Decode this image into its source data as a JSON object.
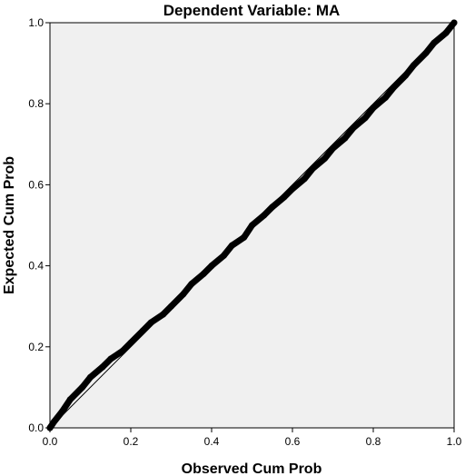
{
  "chart_data": {
    "type": "line",
    "title": "Dependent Variable: MA",
    "xlabel": "Observed Cum Prob",
    "ylabel": "Expected Cum Prob",
    "xlim": [
      0.0,
      1.0
    ],
    "ylim": [
      0.0,
      1.0
    ],
    "x_ticks": [
      "0.0",
      "0.2",
      "0.4",
      "0.6",
      "0.8",
      "1.0"
    ],
    "y_ticks": [
      "0.0",
      "0.2",
      "0.4",
      "0.6",
      "0.8",
      "1.0"
    ],
    "grid": false,
    "plot_background": "#f0f0f0",
    "series": [
      {
        "role": "reference",
        "color": "#000000",
        "x": [
          0.0,
          1.0
        ],
        "y": [
          0.0,
          1.0
        ]
      },
      {
        "role": "observed",
        "color": "#000000",
        "x": [
          0.0,
          0.01,
          0.03,
          0.05,
          0.08,
          0.1,
          0.13,
          0.15,
          0.18,
          0.2,
          0.23,
          0.25,
          0.28,
          0.3,
          0.33,
          0.35,
          0.38,
          0.4,
          0.43,
          0.45,
          0.48,
          0.5,
          0.53,
          0.55,
          0.58,
          0.6,
          0.63,
          0.65,
          0.68,
          0.7,
          0.73,
          0.75,
          0.78,
          0.8,
          0.83,
          0.85,
          0.88,
          0.9,
          0.93,
          0.95,
          0.98,
          1.0
        ],
        "y": [
          0.0,
          0.015,
          0.04,
          0.07,
          0.1,
          0.125,
          0.15,
          0.17,
          0.19,
          0.21,
          0.24,
          0.26,
          0.28,
          0.3,
          0.33,
          0.355,
          0.38,
          0.4,
          0.425,
          0.45,
          0.47,
          0.5,
          0.525,
          0.545,
          0.57,
          0.59,
          0.615,
          0.64,
          0.665,
          0.69,
          0.715,
          0.74,
          0.765,
          0.79,
          0.815,
          0.84,
          0.87,
          0.895,
          0.925,
          0.95,
          0.975,
          1.0
        ]
      }
    ]
  }
}
